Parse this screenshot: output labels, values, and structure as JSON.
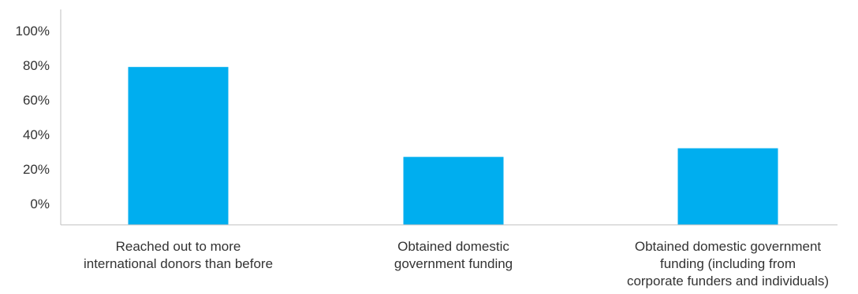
{
  "chart_data": {
    "type": "bar",
    "categories": [
      [
        "Reached out to more",
        "international donors than before"
      ],
      [
        "Obtained domestic",
        "government funding"
      ],
      [
        "Obtained domestic government",
        "funding (including from",
        "corporate funders and individuals)"
      ]
    ],
    "values": [
      79,
      27,
      32
    ],
    "ylim": [
      0,
      100
    ],
    "yticks": [
      "0%",
      "20%",
      "40%",
      "60%",
      "80%",
      "100%"
    ],
    "ytick_values": [
      0,
      20,
      40,
      60,
      80,
      100
    ],
    "xlabel": "",
    "ylabel": "",
    "grid": false,
    "colors": {
      "bar": "#00aeef",
      "axis": "#bfbfbf",
      "text": "#333333"
    }
  }
}
